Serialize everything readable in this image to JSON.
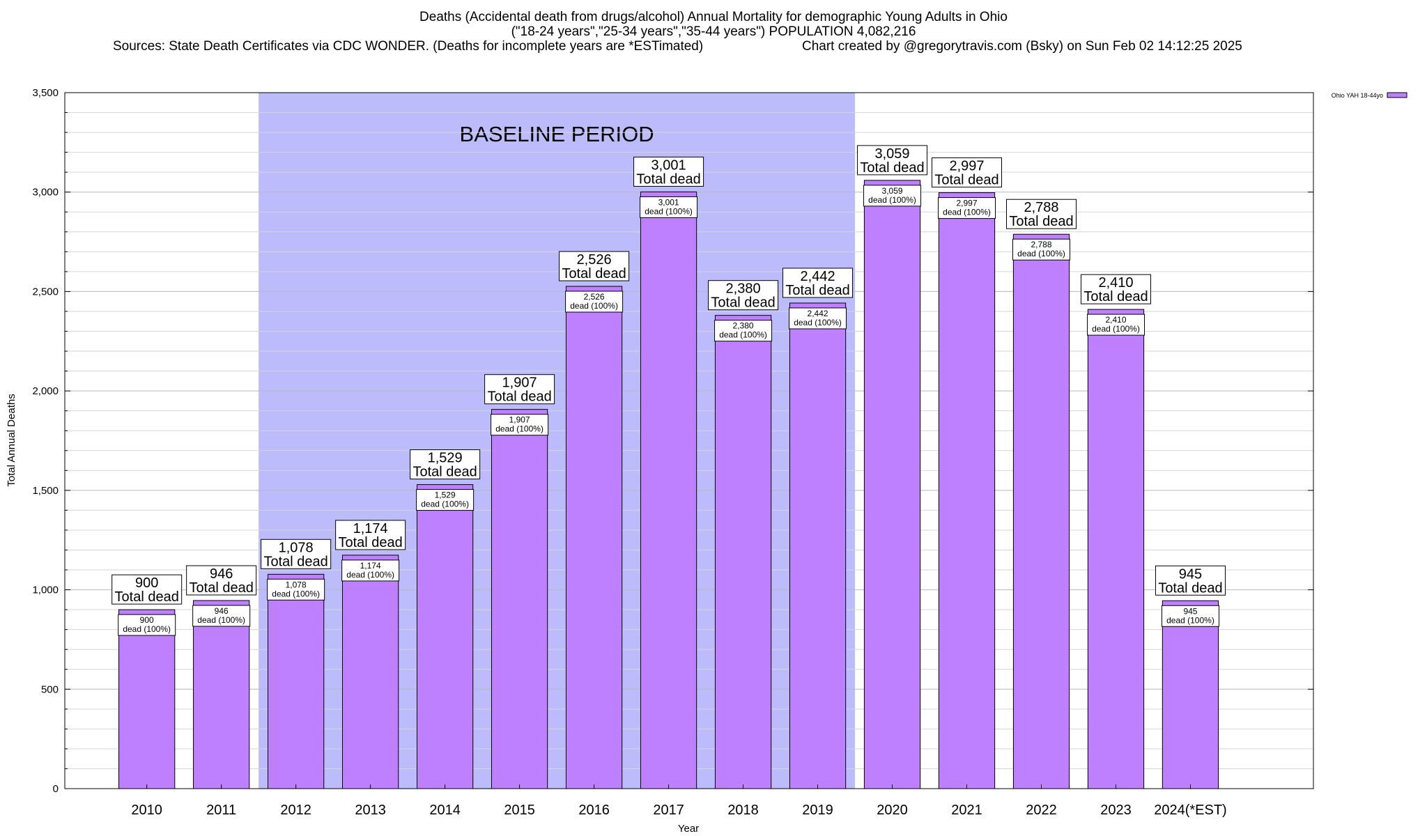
{
  "header": {
    "title_line1": "Deaths (Accidental death from drugs/alcohol) Annual Mortality for demographic Young Adults in Ohio",
    "title_line2": "(\"18-24 years\",\"25-34 years\",\"35-44 years\") POPULATION 4,082,216",
    "source_left": "Sources: State Death Certificates via CDC WONDER. (Deaths for incomplete years are *ESTimated)",
    "source_right": "Chart created by @gregorytravis.com (Bsky) on Sun Feb 02 14:12:25 2025"
  },
  "chart_data": {
    "type": "bar",
    "title": "Deaths (Accidental death from drugs/alcohol) Annual Mortality for demographic Young Adults in Ohio",
    "xlabel": "Year",
    "ylabel": "Total Annual Deaths",
    "ylim": [
      0,
      3500
    ],
    "yticks": [
      0,
      500,
      1000,
      1500,
      2000,
      2500,
      3000,
      3500
    ],
    "ytick_labels": [
      "0",
      "500",
      "1,000",
      "1,500",
      "2,000",
      "2,500",
      "3,000",
      "3,500"
    ],
    "categories": [
      "2010",
      "2011",
      "2012",
      "2013",
      "2014",
      "2015",
      "2016",
      "2017",
      "2018",
      "2019",
      "2020",
      "2021",
      "2022",
      "2023",
      "2024(*EST)"
    ],
    "series": [
      {
        "name": "Ohio YAH 18-44yo",
        "values": [
          900,
          946,
          1078,
          1174,
          1529,
          1907,
          2526,
          3001,
          2380,
          2442,
          3059,
          2997,
          2788,
          2410,
          945
        ],
        "value_labels": [
          "900",
          "946",
          "1,078",
          "1,174",
          "1,529",
          "1,907",
          "2,526",
          "3,001",
          "2,380",
          "2,442",
          "3,059",
          "2,997",
          "2,788",
          "2,410",
          "945"
        ]
      }
    ],
    "total_label_suffix": "Total dead",
    "inner_label_suffix": "dead (100%)",
    "baseline_period": {
      "label": "BASELINE PERIOD",
      "start_category": "2012",
      "end_category": "2019",
      "color": "#bcbcfc"
    },
    "legend_placement": "top-right",
    "grid": true,
    "colors": {
      "bar_fill": "#bf80ff",
      "bar_stroke": "#000000",
      "baseline_fill": "#bcbcfc",
      "gridline": "#c8c8c8"
    }
  }
}
